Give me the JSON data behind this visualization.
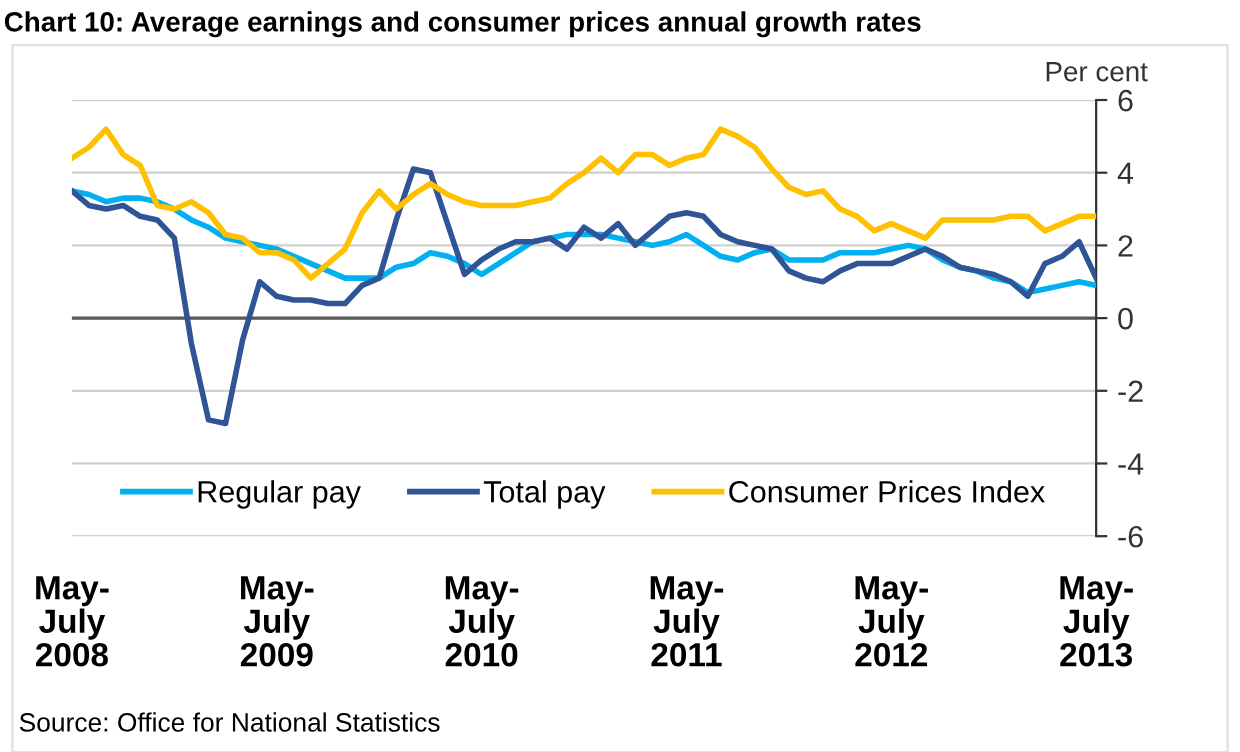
{
  "chart_data": {
    "type": "line",
    "title": "Chart 10: Average earnings and consumer prices annual growth rates",
    "ylabel": "Per cent",
    "categories": [
      "May-\nJuly\n2008",
      null,
      null,
      null,
      null,
      null,
      null,
      null,
      null,
      null,
      null,
      null,
      "May-\nJuly\n2009",
      null,
      null,
      null,
      null,
      null,
      null,
      null,
      null,
      null,
      null,
      null,
      "May-\nJuly\n2010",
      null,
      null,
      null,
      null,
      null,
      null,
      null,
      null,
      null,
      null,
      null,
      "May-\nJuly\n2011",
      null,
      null,
      null,
      null,
      null,
      null,
      null,
      null,
      null,
      null,
      null,
      "May-\nJuly\n2012",
      null,
      null,
      null,
      null,
      null,
      null,
      null,
      null,
      null,
      null,
      null,
      "May-\nJuly\n2013"
    ],
    "series": [
      {
        "name": "Regular pay",
        "color": "#00b0f0",
        "values": [
          3.5,
          3.4,
          3.2,
          3.3,
          3.3,
          3.2,
          3.0,
          2.7,
          2.5,
          2.2,
          2.1,
          2.0,
          1.9,
          1.7,
          1.5,
          1.3,
          1.1,
          1.1,
          1.1,
          1.4,
          1.5,
          1.8,
          1.7,
          1.5,
          1.2,
          1.5,
          1.8,
          2.1,
          2.2,
          2.3,
          2.3,
          2.3,
          2.2,
          2.1,
          2.0,
          2.1,
          2.3,
          2.0,
          1.7,
          1.6,
          1.8,
          1.9,
          1.6,
          1.6,
          1.6,
          1.8,
          1.8,
          1.8,
          1.9,
          2.0,
          1.9,
          1.6,
          1.4,
          1.3,
          1.1,
          1.0,
          0.7,
          0.8,
          0.9,
          1.0,
          0.9
        ]
      },
      {
        "name": "Total pay",
        "color": "#2f5597",
        "values": [
          3.5,
          3.1,
          3.0,
          3.1,
          2.8,
          2.7,
          2.2,
          -0.7,
          -2.8,
          -2.9,
          -0.6,
          1.0,
          0.6,
          0.5,
          0.5,
          0.4,
          0.4,
          0.9,
          1.1,
          2.7,
          4.1,
          4.0,
          2.6,
          1.2,
          1.6,
          1.9,
          2.1,
          2.1,
          2.2,
          1.9,
          2.5,
          2.2,
          2.6,
          2.0,
          2.4,
          2.8,
          2.9,
          2.8,
          2.3,
          2.1,
          2.0,
          1.9,
          1.3,
          1.1,
          1.0,
          1.3,
          1.5,
          1.5,
          1.5,
          1.7,
          1.9,
          1.7,
          1.4,
          1.3,
          1.2,
          1.0,
          0.6,
          1.5,
          1.7,
          2.1,
          1.1
        ]
      },
      {
        "name": "Consumer Prices Index",
        "color": "#ffc000",
        "values": [
          4.4,
          4.7,
          5.2,
          4.5,
          4.2,
          3.1,
          3.0,
          3.2,
          2.9,
          2.3,
          2.2,
          1.8,
          1.8,
          1.6,
          1.1,
          1.5,
          1.9,
          2.9,
          3.5,
          3.0,
          3.4,
          3.7,
          3.4,
          3.2,
          3.1,
          3.1,
          3.1,
          3.2,
          3.3,
          3.7,
          4.0,
          4.4,
          4.0,
          4.5,
          4.5,
          4.2,
          4.4,
          4.5,
          5.2,
          5.0,
          4.7,
          4.1,
          3.6,
          3.4,
          3.5,
          3.0,
          2.8,
          2.4,
          2.6,
          2.4,
          2.2,
          2.7,
          2.7,
          2.7,
          2.7,
          2.8,
          2.8,
          2.4,
          2.6,
          2.8,
          2.8
        ]
      }
    ],
    "ylim": [
      -6,
      6
    ],
    "yticks": [
      -6,
      -4,
      -2,
      0,
      2,
      4,
      6
    ],
    "grid": "y",
    "legend": "bottom",
    "ref_lines": [
      {
        "axis": "y",
        "value": 0,
        "label": null,
        "color": "#595959"
      }
    ],
    "annotations": [
      "Source: Office for National Statistics"
    ]
  }
}
